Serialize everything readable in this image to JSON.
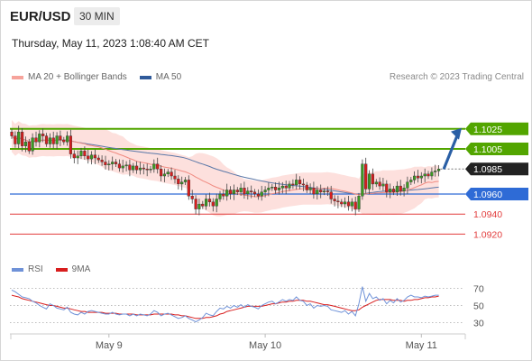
{
  "header": {
    "symbol": "EUR/USD",
    "timeframe": "30 MIN",
    "datetime": "Thursday, May 11, 2023 1:08:40 AM CET",
    "copyright": "Research © 2023 Trading Central"
  },
  "legend": {
    "ma20_bb": "MA 20 + Bollinger Bands",
    "ma50": "MA 50",
    "rsi": "RSI",
    "rsi_ma": "9MA"
  },
  "colors": {
    "resistance": "#52a500",
    "support": "#2e6bd6",
    "current": "#222222",
    "target_red": "#e23c3c",
    "bollinger": "#fcd6d2",
    "ma20": "#f08a80",
    "ma50": "#5b78a8",
    "candle_up": "#3a9b22",
    "candle_down": "#d81e1e",
    "rsi": "#6f92d8",
    "rsi_ma": "#d81e1e",
    "arrow": "#2a5fa5"
  },
  "chart_data": [
    {
      "type": "candlestick",
      "ylim": [
        1.0905,
        1.106
      ],
      "x_labels": [
        "May 9",
        "May 10",
        "May 11"
      ],
      "levels": [
        {
          "value": 1.1025,
          "label": "1.1025",
          "kind": "resistance"
        },
        {
          "value": 1.1005,
          "label": "1.1005",
          "kind": "resistance"
        },
        {
          "value": 1.0985,
          "label": "1.0985",
          "kind": "current"
        },
        {
          "value": 1.096,
          "label": "1.0960",
          "kind": "support"
        },
        {
          "value": 1.094,
          "label": "1.0940",
          "kind": "target"
        },
        {
          "value": 1.092,
          "label": "1.0920",
          "kind": "target"
        }
      ],
      "close": [
        1.1018,
        1.101,
        1.1022,
        1.1008,
        1.1012,
        1.1003,
        1.1016,
        1.1012,
        1.102,
        1.1018,
        1.101,
        1.1016,
        1.101,
        1.1018,
        1.1014,
        1.1012,
        1.1018,
        1.1,
        1.0996,
        1.0998,
        1.1003,
        1.0998,
        1.0995,
        1.0999,
        1.0996,
        1.0994,
        1.0992,
        1.0989,
        1.099,
        1.0992,
        1.099,
        1.0986,
        1.0988,
        1.0989,
        1.0984,
        1.0988,
        1.0984,
        1.0986,
        1.0985,
        1.0984,
        1.0985,
        1.099,
        1.0985,
        1.0978,
        1.098,
        1.0982,
        1.0978,
        1.0975,
        1.097,
        1.0972,
        1.0974,
        1.0958,
        1.0955,
        1.0945,
        1.095,
        1.0948,
        1.0955,
        1.0952,
        1.0948,
        1.0955,
        1.096,
        1.0958,
        1.0964,
        1.096,
        1.0964,
        1.0962,
        1.0966,
        1.096,
        1.0963,
        1.0962,
        1.096,
        1.0958,
        1.0962,
        1.0964,
        1.0966,
        1.0967,
        1.0964,
        1.0966,
        1.0968,
        1.0966,
        1.097,
        1.0969,
        1.0974,
        1.097,
        1.0969,
        1.0964,
        1.0966,
        1.096,
        1.0964,
        1.0962,
        1.0963,
        1.0962,
        1.0955,
        1.0953,
        1.0952,
        1.095,
        1.0952,
        1.0948,
        1.0952,
        1.0945,
        1.0958,
        1.099,
        1.0965,
        1.098,
        1.097,
        1.0972,
        1.0968,
        1.097,
        1.0962,
        1.0965,
        1.0962,
        1.0968,
        1.0963,
        1.0966,
        1.0972,
        1.0974,
        1.0978,
        1.0976,
        1.0978,
        1.098,
        1.0978,
        1.0982,
        1.0983,
        1.0985
      ],
      "rsi": {
        "ylim": [
          20,
          80
        ],
        "levels": [
          70,
          50,
          30
        ],
        "values": [
          68,
          66,
          63,
          60,
          59,
          58,
          55,
          53,
          50,
          48,
          46,
          52,
          50,
          47,
          46,
          45,
          48,
          42,
          40,
          39,
          42,
          40,
          43,
          44,
          43,
          42,
          41,
          40,
          40,
          42,
          40,
          39,
          40,
          40,
          38,
          40,
          38,
          40,
          39,
          38,
          40,
          44,
          42,
          38,
          40,
          41,
          39,
          37,
          35,
          36,
          38,
          35,
          33,
          31,
          33,
          36,
          41,
          39,
          38,
          43,
          47,
          46,
          49,
          47,
          50,
          48,
          51,
          48,
          51,
          49,
          48,
          46,
          50,
          52,
          54,
          55,
          52,
          54,
          57,
          55,
          57,
          56,
          60,
          56,
          55,
          50,
          52,
          47,
          50,
          49,
          50,
          49,
          45,
          44,
          43,
          42,
          44,
          40,
          43,
          38,
          52,
          72,
          55,
          64,
          58,
          60,
          56,
          58,
          52,
          56,
          53,
          58,
          54,
          56,
          60,
          62,
          60,
          60,
          59,
          61,
          60,
          61,
          62,
          62
        ],
        "ma": [
          62,
          61,
          60,
          58,
          57,
          56,
          55,
          54,
          53,
          52,
          51,
          50,
          50,
          49,
          48,
          47,
          47,
          46,
          45,
          44,
          43,
          43,
          42,
          42,
          42,
          42,
          42,
          41,
          41,
          41,
          41,
          40,
          40,
          40,
          40,
          40,
          39,
          39,
          39,
          39,
          39,
          40,
          40,
          40,
          40,
          40,
          40,
          39,
          39,
          38,
          38,
          37,
          36,
          35,
          35,
          35,
          36,
          36,
          37,
          38,
          40,
          41,
          43,
          44,
          45,
          46,
          47,
          48,
          49,
          49,
          49,
          49,
          49,
          50,
          51,
          52,
          52,
          53,
          54,
          54,
          55,
          55,
          56,
          56,
          56,
          55,
          55,
          54,
          53,
          52,
          51,
          51,
          50,
          49,
          48,
          47,
          46,
          45,
          44,
          44,
          45,
          48,
          50,
          52,
          54,
          56,
          57,
          57,
          57,
          57,
          56,
          56,
          56,
          55,
          56,
          56,
          57,
          57,
          58,
          59,
          59,
          60,
          60,
          61
        ]
      }
    }
  ]
}
